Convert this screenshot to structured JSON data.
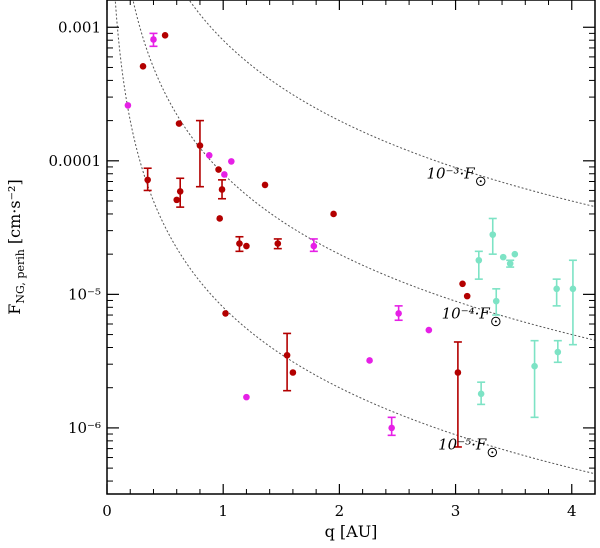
{
  "chart_data": {
    "type": "scatter",
    "title": "",
    "xlabel": "q [AU]",
    "ylabel": "F_NG, perih [cm·s⁻²]",
    "ylabel_main": "F",
    "ylabel_sub": "NG, perih",
    "ylabel_unit": "[cm·s⁻²]",
    "xlim": [
      0,
      4.2
    ],
    "ylim": [
      3.2e-07,
      0.0016
    ],
    "yscale": "log",
    "x_ticks": [
      0,
      1,
      2,
      3,
      4
    ],
    "x_tick_labels": [
      "0",
      "1",
      "2",
      "3",
      "4"
    ],
    "y_ticks": [
      1e-06,
      1e-05,
      0.0001,
      0.001
    ],
    "y_tick_labels": [
      "10⁻⁶",
      "10⁻⁵",
      "0.0001",
      "0.001"
    ],
    "colors": {
      "red": "#b30000",
      "magenta": "#e620e6",
      "teal": "#7de3c5",
      "curve": "#555555"
    },
    "curves": [
      {
        "name": "1e-3 F_sun",
        "A": 0.0008,
        "label": "10⁻³·F",
        "label_x": 2.75,
        "label_y": 7.4e-05
      },
      {
        "name": "1e-4 F_sun",
        "A": 8e-05,
        "label": "10⁻⁴·F",
        "label_x": 2.88,
        "label_y": 6.6e-06
      },
      {
        "name": "1e-5 F_sun",
        "A": 8e-06,
        "label": "10⁻⁵·F",
        "label_x": 2.85,
        "label_y": 6.9e-07
      }
    ],
    "series": [
      {
        "name": "red",
        "color": "#b30000",
        "points": [
          {
            "x": 0.31,
            "y": 0.00051
          },
          {
            "x": 0.5,
            "y": 0.00087
          },
          {
            "x": 0.35,
            "y": 7.2e-05,
            "ylo": 6e-05,
            "yhi": 8.8e-05
          },
          {
            "x": 0.62,
            "y": 0.00019
          },
          {
            "x": 0.6,
            "y": 5.1e-05
          },
          {
            "x": 0.63,
            "y": 5.9e-05,
            "ylo": 4.5e-05,
            "yhi": 7.4e-05
          },
          {
            "x": 0.8,
            "y": 0.00013,
            "ylo": 6.4e-05,
            "yhi": 0.0002
          },
          {
            "x": 0.96,
            "y": 8.6e-05
          },
          {
            "x": 0.97,
            "y": 3.7e-05
          },
          {
            "x": 0.99,
            "y": 6.1e-05,
            "ylo": 5.2e-05,
            "yhi": 7.2e-05
          },
          {
            "x": 1.02,
            "y": 7.2e-06
          },
          {
            "x": 1.14,
            "y": 2.4e-05,
            "ylo": 2.1e-05,
            "yhi": 2.7e-05
          },
          {
            "x": 1.2,
            "y": 2.3e-05
          },
          {
            "x": 1.36,
            "y": 6.6e-05
          },
          {
            "x": 1.47,
            "y": 2.4e-05,
            "ylo": 2.2e-05,
            "yhi": 2.6e-05
          },
          {
            "x": 1.95,
            "y": 4e-05
          },
          {
            "x": 1.55,
            "y": 3.5e-06,
            "ylo": 1.9e-06,
            "yhi": 5.1e-06
          },
          {
            "x": 1.6,
            "y": 2.6e-06
          },
          {
            "x": 3.02,
            "y": 2.6e-06,
            "ylo": 7.2e-07,
            "yhi": 4.4e-06
          },
          {
            "x": 3.06,
            "y": 1.2e-05
          },
          {
            "x": 3.1,
            "y": 9.7e-06
          }
        ]
      },
      {
        "name": "magenta",
        "color": "#e620e6",
        "points": [
          {
            "x": 0.18,
            "y": 0.00026
          },
          {
            "x": 0.4,
            "y": 0.00081,
            "ylo": 0.00072,
            "yhi": 0.0009
          },
          {
            "x": 0.88,
            "y": 0.00011
          },
          {
            "x": 1.01,
            "y": 7.9e-05
          },
          {
            "x": 1.07,
            "y": 9.9e-05
          },
          {
            "x": 1.78,
            "y": 2.3e-05,
            "ylo": 2.1e-05,
            "yhi": 2.6e-05
          },
          {
            "x": 1.2,
            "y": 1.7e-06
          },
          {
            "x": 2.26,
            "y": 3.2e-06
          },
          {
            "x": 2.45,
            "y": 1e-06,
            "ylo": 8.8e-07,
            "yhi": 1.2e-06
          },
          {
            "x": 2.51,
            "y": 7.2e-06,
            "ylo": 6.4e-06,
            "yhi": 8.2e-06
          },
          {
            "x": 2.77,
            "y": 5.4e-06
          }
        ]
      },
      {
        "name": "teal",
        "color": "#7de3c5",
        "points": [
          {
            "x": 3.2,
            "y": 1.8e-05,
            "ylo": 1.3e-05,
            "yhi": 2.1e-05
          },
          {
            "x": 3.32,
            "y": 2.8e-05,
            "ylo": 2e-05,
            "yhi": 3.7e-05
          },
          {
            "x": 3.35,
            "y": 8.9e-06,
            "ylo": 7e-06,
            "yhi": 1.1e-05
          },
          {
            "x": 3.41,
            "y": 1.9e-05
          },
          {
            "x": 3.47,
            "y": 1.7e-05,
            "ylo": 1.6e-05,
            "yhi": 1.8e-05
          },
          {
            "x": 3.51,
            "y": 2e-05
          },
          {
            "x": 3.22,
            "y": 1.8e-06,
            "ylo": 1.5e-06,
            "yhi": 2.2e-06
          },
          {
            "x": 3.68,
            "y": 2.9e-06,
            "ylo": 1.2e-06,
            "yhi": 4.5e-06
          },
          {
            "x": 3.87,
            "y": 1.1e-05,
            "ylo": 8.2e-06,
            "yhi": 1.3e-05
          },
          {
            "x": 3.88,
            "y": 3.7e-06,
            "ylo": 3.1e-06,
            "yhi": 4.5e-06
          },
          {
            "x": 4.01,
            "y": 1.1e-05,
            "ylo": 4.2e-06,
            "yhi": 1.8e-05
          }
        ]
      }
    ]
  }
}
